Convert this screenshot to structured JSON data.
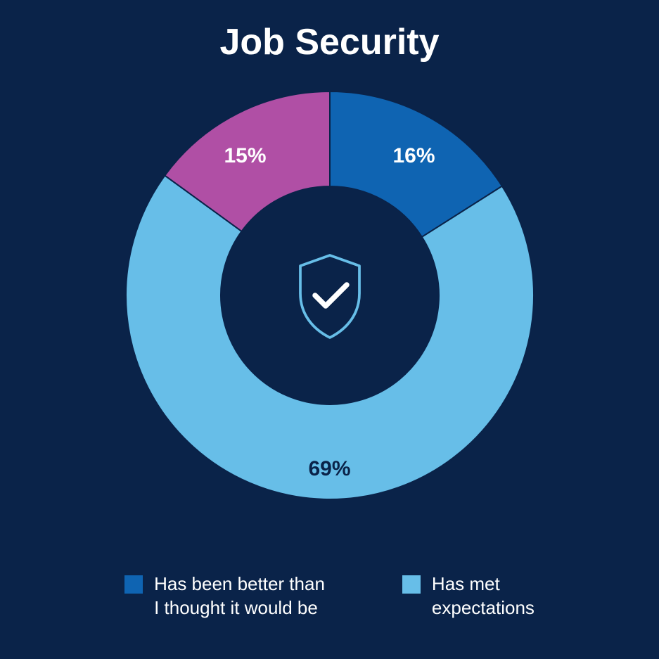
{
  "chart": {
    "type": "donut",
    "title": "Job Security",
    "title_fontsize": 52,
    "title_color": "#ffffff",
    "background_color": "#0a2349",
    "outer_radius": 290,
    "inner_radius": 155,
    "stroke_color": "#0a2349",
    "stroke_width": 2,
    "slices": [
      {
        "label": "16%",
        "value": 16,
        "color": "#0f64b2",
        "label_color": "#ffffff"
      },
      {
        "label": "69%",
        "value": 69,
        "color": "#67bee8",
        "label_color": "#0a2349"
      },
      {
        "label": "15%",
        "value": 15,
        "color": "#b04fa5",
        "label_color": "#ffffff"
      }
    ],
    "center_icon": {
      "name": "shield-check-icon",
      "stroke": "#67bee8",
      "check_stroke": "#ffffff",
      "background": "#0a2349"
    }
  },
  "legend": {
    "items": [
      {
        "swatch_color": "#0f64b2",
        "label": "Has been better than\nI thought it would be"
      },
      {
        "swatch_color": "#67bee8",
        "label": "Has met\nexpectations"
      }
    ],
    "text_color": "#ffffff",
    "font_size": 26
  }
}
